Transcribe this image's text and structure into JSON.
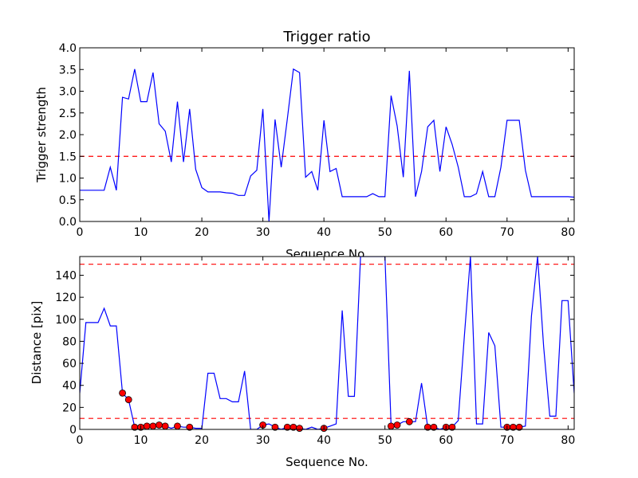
{
  "chart_data": [
    {
      "type": "line",
      "title": "Trigger ratio",
      "xlabel": "Sequence No.",
      "ylabel": "Trigger strength",
      "xlim": [
        0,
        81
      ],
      "ylim": [
        0,
        4.0
      ],
      "xticks": [
        0,
        10,
        20,
        30,
        40,
        50,
        60,
        70,
        80
      ],
      "yticks": [
        0.0,
        0.5,
        1.0,
        1.5,
        2.0,
        2.5,
        3.0,
        3.5,
        4.0
      ],
      "ytick_labels": [
        "0.0",
        "0.5",
        "1.0",
        "1.5",
        "2.0",
        "2.5",
        "3.0",
        "3.5",
        "4.0"
      ],
      "grid": false,
      "line_color": "#0000ff",
      "threshold": {
        "y": 1.5,
        "color": "#ff0000",
        "style": "dashed"
      },
      "series": [
        {
          "x": [
            0,
            1,
            2,
            3,
            4,
            5,
            6,
            7,
            8,
            9,
            10,
            11,
            12,
            13,
            14,
            15,
            16,
            17,
            18,
            19,
            20,
            21,
            22,
            23,
            24,
            25,
            26,
            27,
            28,
            29,
            30,
            31,
            32,
            33,
            34,
            35,
            36,
            37,
            38,
            39,
            40,
            41,
            42,
            43,
            44,
            45,
            46,
            47,
            48,
            49,
            50,
            51,
            52,
            53,
            54,
            55,
            56,
            57,
            58,
            59,
            60,
            61,
            62,
            63,
            64,
            65,
            66,
            67,
            68,
            69,
            70,
            71,
            72,
            73,
            74,
            75,
            76,
            77,
            78,
            79,
            80,
            81
          ],
          "values": [
            0.72,
            0.72,
            0.72,
            0.72,
            0.72,
            1.25,
            0.72,
            2.86,
            2.82,
            3.51,
            2.76,
            2.76,
            3.43,
            2.25,
            2.08,
            1.37,
            2.76,
            1.37,
            2.59,
            1.2,
            0.78,
            0.68,
            0.68,
            0.68,
            0.66,
            0.65,
            0.6,
            0.6,
            1.05,
            1.18,
            2.59,
            0.0,
            2.35,
            1.25,
            2.35,
            3.51,
            3.43,
            1.02,
            1.15,
            0.72,
            2.33,
            1.15,
            1.22,
            0.57,
            0.57,
            0.57,
            0.57,
            0.57,
            0.64,
            0.57,
            0.57,
            2.9,
            2.2,
            1.02,
            3.47,
            0.57,
            1.15,
            2.18,
            2.33,
            1.15,
            2.18,
            1.78,
            1.25,
            0.57,
            0.57,
            0.64,
            1.15,
            0.57,
            0.57,
            1.25,
            2.33,
            2.33,
            2.33,
            1.18,
            0.57,
            0.57,
            0.57,
            0.57,
            0.57,
            0.57,
            0.57,
            0.56
          ]
        }
      ]
    },
    {
      "type": "line",
      "title": "",
      "xlabel": "Sequence No.",
      "ylabel": "Distance [pix]",
      "xlim": [
        0,
        81
      ],
      "ylim": [
        0,
        157
      ],
      "xticks": [
        0,
        10,
        20,
        30,
        40,
        50,
        60,
        70,
        80
      ],
      "yticks": [
        0,
        20,
        40,
        60,
        80,
        100,
        120,
        140
      ],
      "ytick_labels": [
        "0",
        "20",
        "40",
        "60",
        "80",
        "100",
        "120",
        "140"
      ],
      "grid": false,
      "line_color": "#0000ff",
      "thresholds": [
        {
          "y": 150,
          "color": "#ff0000",
          "style": "dashed"
        },
        {
          "y": 10,
          "color": "#ff0000",
          "style": "dashed"
        }
      ],
      "series": [
        {
          "x": [
            0,
            1,
            2,
            3,
            4,
            5,
            6,
            7,
            8,
            9,
            10,
            11,
            12,
            13,
            14,
            15,
            16,
            17,
            18,
            19,
            20,
            21,
            22,
            23,
            24,
            25,
            26,
            27,
            28,
            29,
            30,
            31,
            32,
            33,
            34,
            35,
            36,
            37,
            38,
            39,
            40,
            41,
            42,
            43,
            44,
            45,
            46,
            47,
            48,
            49,
            50,
            51,
            52,
            53,
            54,
            55,
            56,
            57,
            58,
            59,
            60,
            61,
            62,
            63,
            64,
            65,
            66,
            67,
            68,
            69,
            70,
            71,
            72,
            73,
            74,
            75,
            76,
            77,
            78,
            79,
            80,
            81
          ],
          "values": [
            33,
            97,
            97,
            97,
            110,
            94,
            94,
            33,
            27,
            2,
            2,
            3,
            3,
            4,
            3,
            1,
            3,
            2,
            2,
            1,
            1,
            51,
            51,
            28,
            28,
            25,
            25,
            53,
            0,
            0,
            4,
            5,
            2,
            0,
            2,
            2,
            1,
            0,
            2,
            0,
            1,
            3,
            5,
            108,
            30,
            30,
            157,
            157,
            157,
            157,
            157,
            3,
            4,
            7,
            7,
            7,
            42,
            2,
            2,
            0,
            2,
            2,
            8,
            84,
            157,
            5,
            5,
            88,
            76,
            2,
            2,
            2,
            2,
            3,
            103,
            157,
            75,
            12,
            12,
            117,
            117,
            33
          ]
        }
      ],
      "markers": {
        "color": "#ff0000",
        "x": [
          7,
          8,
          9,
          10,
          11,
          12,
          13,
          14,
          16,
          18,
          30,
          32,
          34,
          35,
          36,
          40,
          51,
          52,
          54,
          57,
          58,
          60,
          61,
          70,
          71,
          72
        ],
        "values": [
          33,
          27,
          2,
          2,
          3,
          3,
          4,
          3,
          3,
          2,
          4,
          2,
          2,
          2,
          1,
          1,
          3,
          4,
          7,
          2,
          2,
          2,
          2,
          2,
          2,
          2
        ]
      }
    }
  ]
}
